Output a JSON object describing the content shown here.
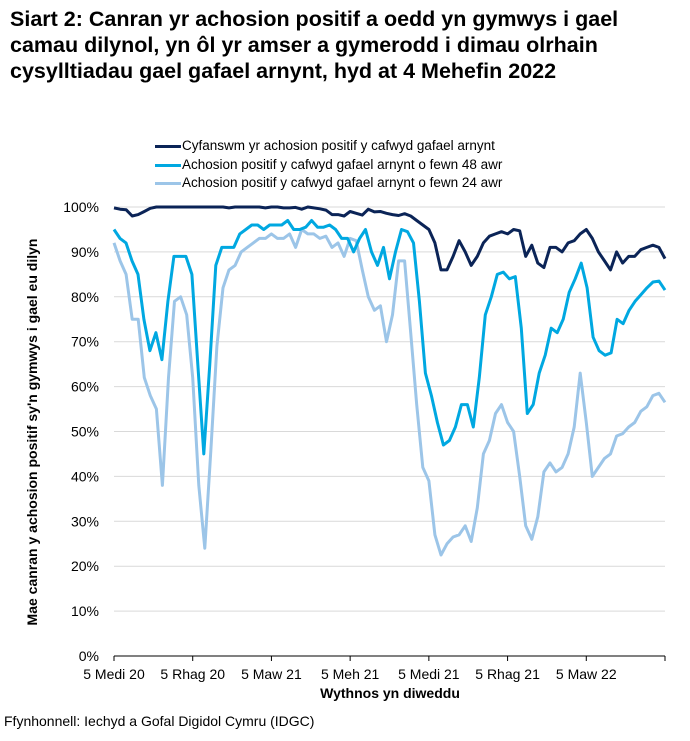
{
  "title": "Siart 2: Canran yr achosion positif a oedd yn gymwys i gael camau dilynol, yn ôl yr amser a gymerodd i dimau olrhain cysylltiadau gael gafael arnynt, hyd at 4 Mehefin 2022",
  "source": "Ffynhonnell: Iechyd a Gofal Digidol Cymru (IDGC)",
  "chart_data": {
    "type": "line",
    "title": "Siart 2: Canran yr achosion positif a oedd yn gymwys i gael camau dilynol, yn ôl yr amser a gymerodd i dimau olrhain cysylltiadau gael gafael arnynt, hyd at 4 Mehefin 2022",
    "xlabel": "Wythnos yn diweddu",
    "ylabel": "Mae canran y achosion positif sy'n gymwys i gael eu dilyn",
    "ylim": [
      0,
      100
    ],
    "yticks": [
      "0%",
      "10%",
      "20%",
      "30%",
      "40%",
      "50%",
      "60%",
      "70%",
      "80%",
      "90%",
      "100%"
    ],
    "xtick_labels": [
      "5 Medi 20",
      "5 Rhag 20",
      "5 Maw 21",
      "5 Meh 21",
      "5 Medi 21",
      "5 Rhag 21",
      "5 Maw 22"
    ],
    "x_start": "5 Medi 20",
    "x_end": "4 Meh 22",
    "x_frequency": "weekly",
    "grid": true,
    "legend_position": "top",
    "series": [
      {
        "name": "Cyfanswm yr achosion positif y cafwyd gafael arnynt",
        "color": "#0b2457",
        "values": [
          99.8,
          99.5,
          99.4,
          98,
          98.3,
          99,
          99.7,
          100,
          100,
          100,
          100,
          100,
          100,
          100,
          100,
          100,
          100,
          100,
          100,
          99.8,
          100,
          100,
          100,
          100,
          100,
          99.8,
          100,
          100,
          99.8,
          99.8,
          99.9,
          99.5,
          100,
          99.8,
          99.6,
          99.3,
          98.3,
          98.3,
          98,
          99,
          98.6,
          98.2,
          99.5,
          98.9,
          99,
          98.6,
          98.3,
          98.1,
          98.5,
          98,
          97,
          96,
          95,
          92,
          86,
          86,
          89,
          92.5,
          90,
          87,
          89,
          92,
          93.5,
          94,
          94.5,
          94,
          95,
          94.7,
          89,
          91.5,
          87.5,
          86.5,
          91,
          91,
          90,
          92,
          92.5,
          94,
          95,
          93,
          90,
          88,
          86,
          90,
          87.5,
          89,
          89,
          90.5,
          91,
          91.5,
          91,
          88.5
        ]
      },
      {
        "name": "Achosion positif y cafwyd gafael arnynt o fewn 48 awr",
        "color": "#00a8e1",
        "values": [
          95,
          93,
          92,
          88,
          85,
          75,
          68,
          72,
          66,
          79,
          89,
          89,
          89,
          85,
          65,
          45,
          65,
          87,
          91,
          91,
          91,
          94,
          95,
          96,
          96,
          95,
          96,
          96,
          96,
          97,
          95,
          95,
          95.5,
          97,
          95.5,
          95.5,
          96,
          95,
          93,
          93,
          90,
          93,
          95,
          90,
          87,
          91,
          84,
          90,
          95,
          94.5,
          92,
          79,
          63,
          58,
          52,
          47,
          48,
          51,
          56,
          56,
          51,
          62,
          76,
          80,
          85,
          85.5,
          84,
          84.5,
          73,
          54,
          56,
          63,
          67,
          73,
          72,
          75,
          81,
          84,
          87.5,
          82,
          71,
          68,
          67,
          67.5,
          75,
          74,
          77,
          79,
          80.5,
          82,
          83.3,
          83.5,
          81.5
        ]
      },
      {
        "name": "Achosion positif y cafwyd gafael arnynt o fewn 24 awr",
        "color": "#9cc5e8",
        "values": [
          92,
          88,
          85,
          75,
          75,
          62,
          58,
          55,
          38,
          62,
          79,
          80,
          76,
          62,
          38,
          24,
          46,
          69,
          82,
          86,
          87,
          90,
          91,
          92,
          93,
          93,
          94,
          93,
          93,
          94,
          91,
          95,
          94,
          94,
          93,
          93.5,
          91,
          92,
          89,
          93,
          92.5,
          86,
          80,
          77,
          78,
          70,
          76,
          88,
          88,
          72,
          56,
          42,
          39,
          27,
          22.5,
          25,
          26.5,
          27,
          29,
          25.5,
          33,
          45,
          48,
          54,
          56,
          52,
          50,
          40,
          29,
          26,
          31,
          41,
          43,
          41,
          42,
          45,
          51,
          63,
          52,
          40,
          42,
          44,
          45,
          49,
          49.5,
          51,
          52,
          54.5,
          55.5,
          58,
          58.5,
          56.5
        ]
      }
    ]
  }
}
